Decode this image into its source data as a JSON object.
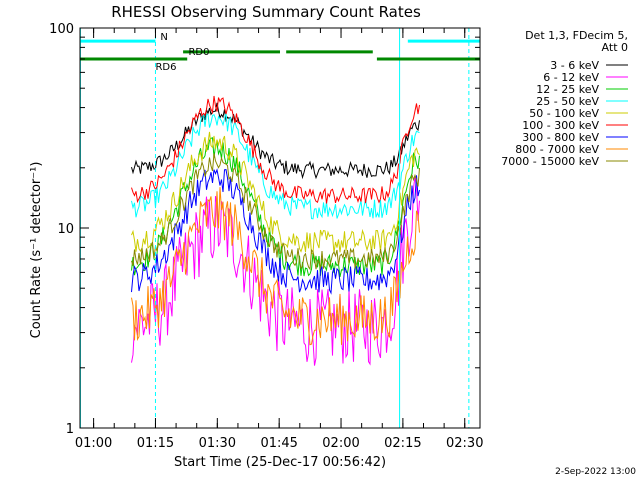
{
  "chart_data": {
    "type": "line",
    "title": "RHESSI Observing Summary Count Rates",
    "xlabel": "Start Time (25-Dec-17 00:56:42)",
    "ylabel": "Count Rate (s⁻¹ detector⁻¹)",
    "x_unit": "minutes",
    "xlim": [
      0,
      97
    ],
    "ylim": [
      1,
      100
    ],
    "y_scale": "log",
    "x_ticks": [
      {
        "value": 3.3,
        "label": "01:00"
      },
      {
        "value": 18.3,
        "label": "01:15"
      },
      {
        "value": 33.3,
        "label": "01:30"
      },
      {
        "value": 48.3,
        "label": "01:45"
      },
      {
        "value": 63.3,
        "label": "02:00"
      },
      {
        "value": 78.3,
        "label": "02:15"
      },
      {
        "value": 93.3,
        "label": "02:30"
      }
    ],
    "y_ticks": [
      {
        "value": 1,
        "label": "1"
      },
      {
        "value": 10,
        "label": "10"
      },
      {
        "value": 100,
        "label": "100"
      }
    ],
    "legend_header": [
      "Det 1,3, FDecim 5,",
      "Att 0"
    ],
    "legend_position": "right",
    "time_range": [
      12.5,
      82.5
    ],
    "series": [
      {
        "name": "3 - 6 keV",
        "color": "#000000",
        "bg": 19.5,
        "peak": 39,
        "end": 33,
        "noise": 0.09
      },
      {
        "name": "6 - 12 keV",
        "color": "#ff00ff",
        "bg": 3.2,
        "peak": 10,
        "end": 14,
        "noise": 0.45
      },
      {
        "name": "12 - 25 keV",
        "color": "#00cc00",
        "bg": 6.5,
        "peak": 25,
        "end": 22,
        "noise": 0.14
      },
      {
        "name": "25 - 50 keV",
        "color": "#00ffff",
        "bg": 12.5,
        "peak": 36,
        "end": 29,
        "noise": 0.12
      },
      {
        "name": "50 - 100 keV",
        "color": "#cccc00",
        "bg": 8.5,
        "peak": 27,
        "end": 24,
        "noise": 0.14
      },
      {
        "name": "100 - 300 keV",
        "color": "#ff0000",
        "bg": 14.5,
        "peak": 42,
        "end": 40,
        "noise": 0.1
      },
      {
        "name": "300 - 800 keV",
        "color": "#0000ff",
        "bg": 5.5,
        "peak": 18,
        "end": 16,
        "noise": 0.16
      },
      {
        "name": "800 - 7000 keV",
        "color": "#ff8800",
        "bg": 3.5,
        "peak": 12,
        "end": 10,
        "noise": 0.3
      },
      {
        "name": "7000 - 15000 keV",
        "color": "#888800",
        "bg": 7.0,
        "peak": 21,
        "end": 18,
        "noise": 0.12
      }
    ],
    "flag_bars": [
      {
        "label": "N",
        "color": "#00ffff",
        "y": 86,
        "segments": [
          [
            0,
            18.3
          ],
          [
            79.5,
            97
          ]
        ]
      },
      {
        "label": "RD0",
        "color": "#008800",
        "y": 76,
        "segments": [
          [
            25,
            48.5
          ],
          [
            50,
            71
          ]
        ]
      },
      {
        "label": "RD6",
        "color": "#008800",
        "y": 70,
        "segments": [
          [
            0,
            26
          ],
          [
            72,
            97
          ]
        ]
      }
    ],
    "vertical_lines": [
      {
        "x": 0.1,
        "color": "#00ffff",
        "dashed": false
      },
      {
        "x": 18.3,
        "color": "#00ffff",
        "dashed": true
      },
      {
        "x": 77.5,
        "color": "#00ffff",
        "dashed": false
      },
      {
        "x": 94.3,
        "color": "#00ffff",
        "dashed": true
      }
    ]
  },
  "footer": {
    "date": "2-Sep-2022 13:00"
  }
}
